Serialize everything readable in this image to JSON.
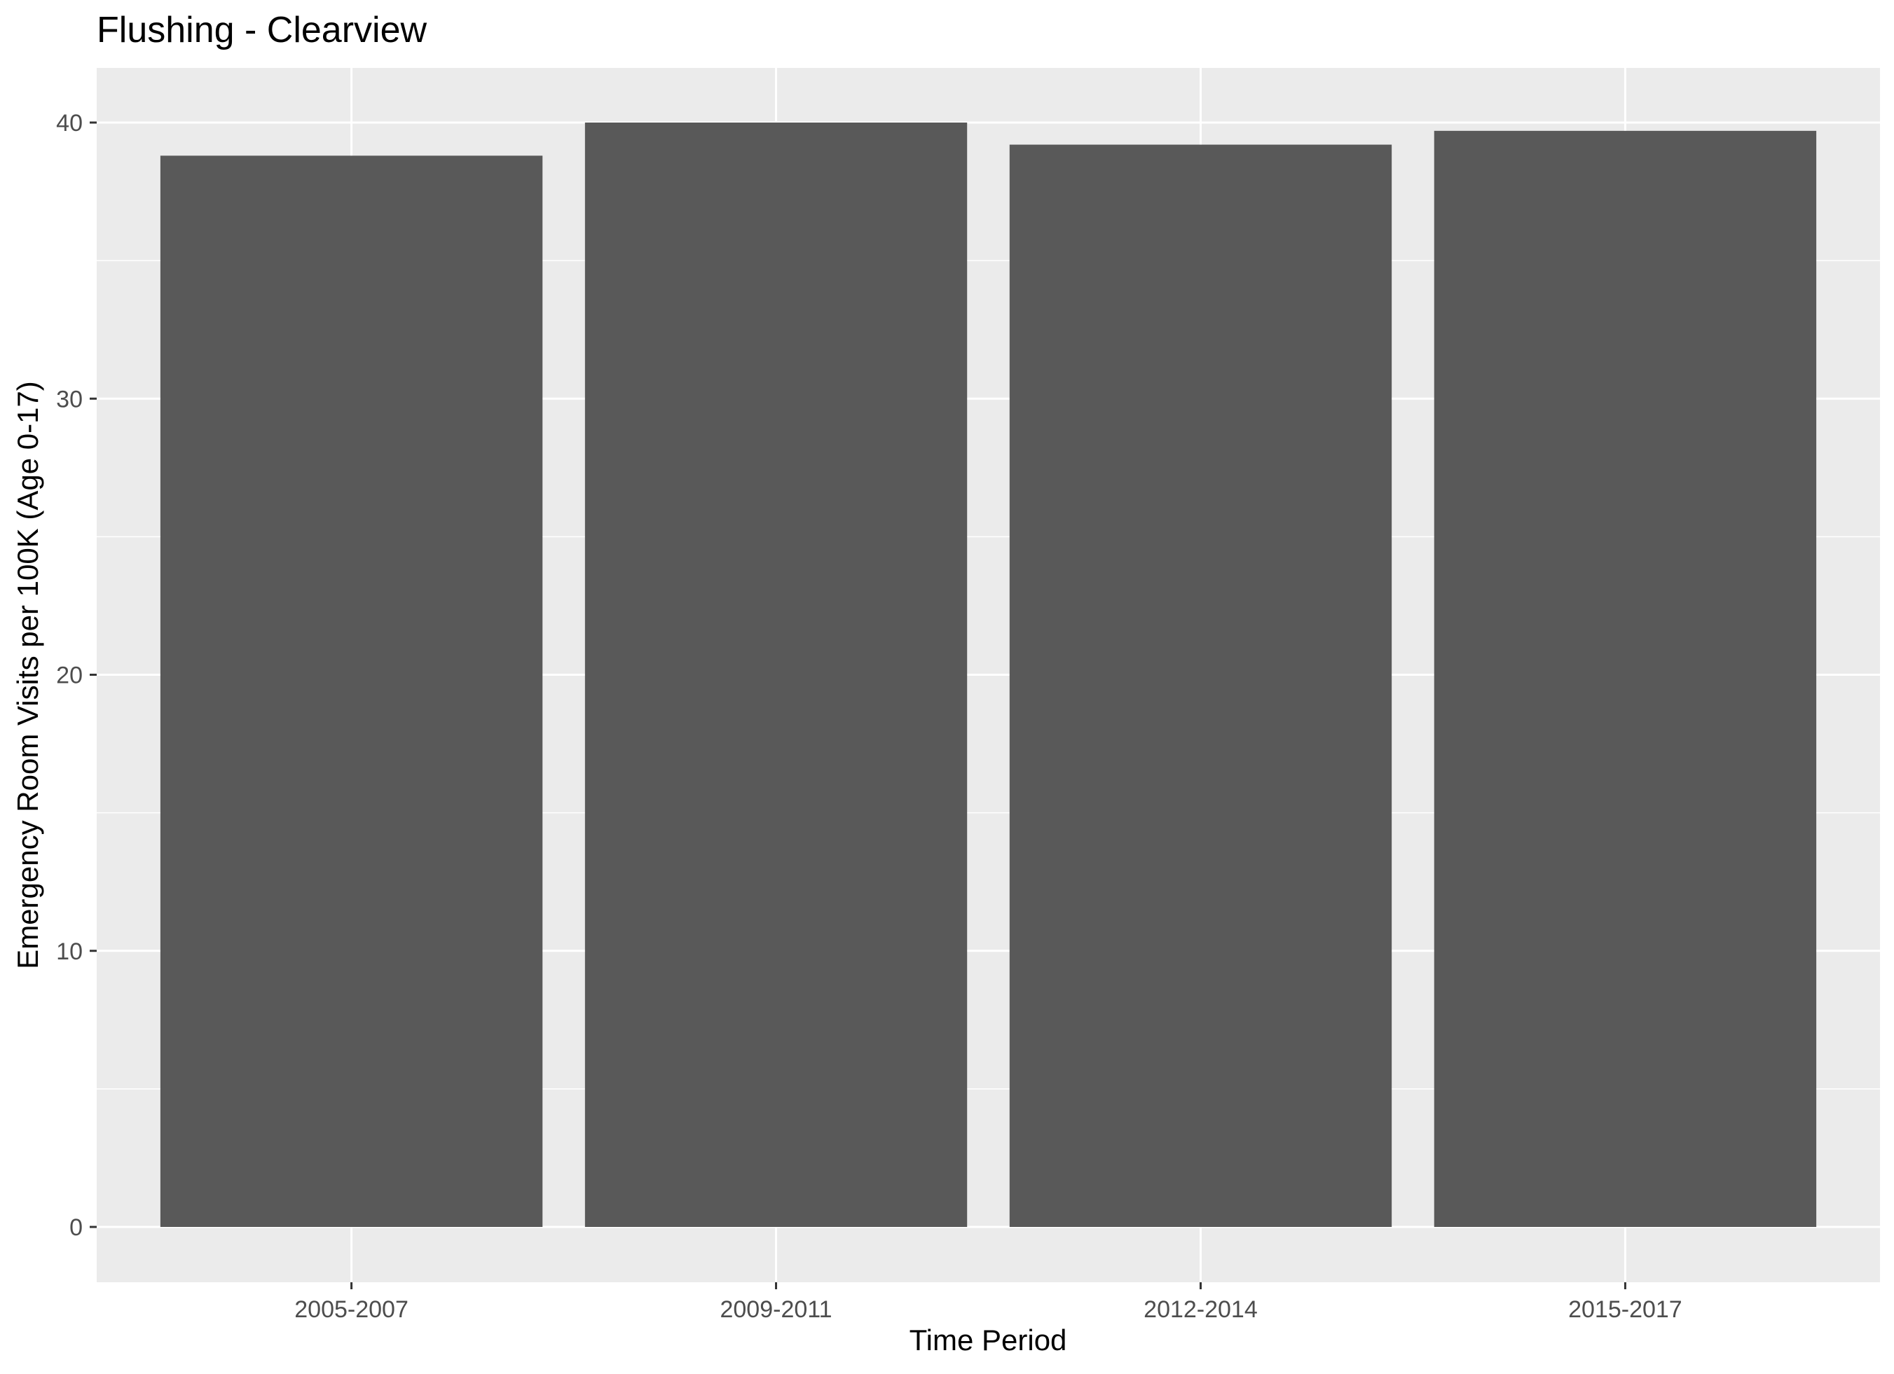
{
  "chart_data": {
    "type": "bar",
    "title": "Flushing - Clearview",
    "xlabel": "Time Period",
    "ylabel": "Emergency Room Visits per 100K (Age 0-17)",
    "categories": [
      "2005-2007",
      "2009-2011",
      "2012-2014",
      "2015-2017"
    ],
    "values": [
      38.8,
      40.0,
      39.2,
      39.7
    ],
    "ylim": [
      0,
      42
    ],
    "y_ticks": [
      "0",
      "10",
      "20",
      "30",
      "40"
    ],
    "grid": true,
    "colors": {
      "bar": "#595959",
      "panel": "#ebebeb",
      "gridline": "#ffffff",
      "tick": "#333333"
    }
  }
}
